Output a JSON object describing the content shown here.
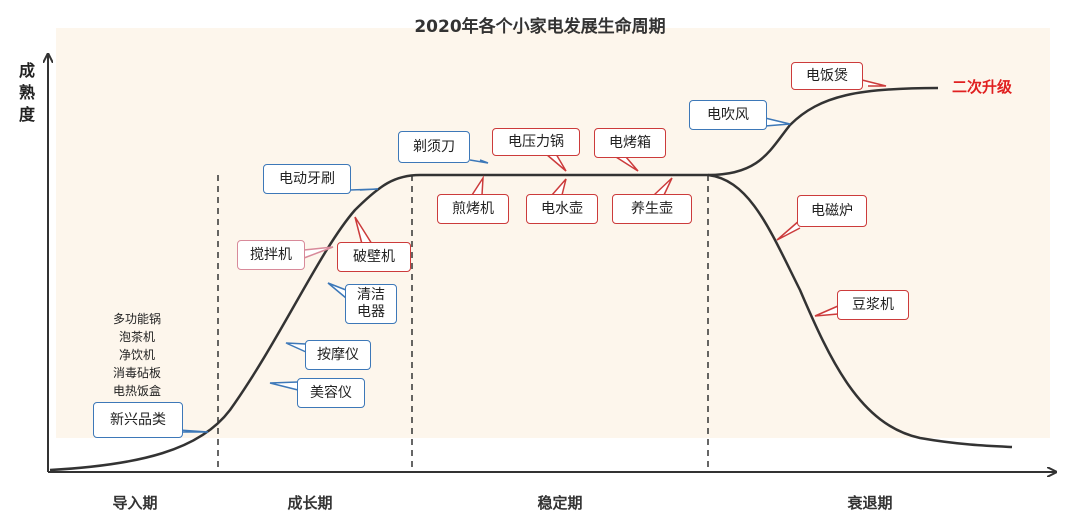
{
  "title": "2020年各个小家电发展生命周期",
  "y_axis_label": "成熟度",
  "stages": [
    "导入期",
    "成长期",
    "稳定期",
    "衰退期"
  ],
  "emerging_list": [
    "多功能锅",
    "泡茶机",
    "净饮机",
    "消毒砧板",
    "电热饭盒"
  ],
  "upgrade_label": "二次升级",
  "callouts": [
    {
      "label": "新兴品类",
      "style": "blue"
    },
    {
      "label": "美容仪",
      "style": "blue"
    },
    {
      "label": "按摩仪",
      "style": "blue"
    },
    {
      "label": "清洁\n电器",
      "style": "blue"
    },
    {
      "label": "搅拌机",
      "style": "pink"
    },
    {
      "label": "破壁机",
      "style": "red"
    },
    {
      "label": "电动牙刷",
      "style": "blue"
    },
    {
      "label": "剃须刀",
      "style": "blue"
    },
    {
      "label": "电压力锅",
      "style": "red"
    },
    {
      "label": "电烤箱",
      "style": "red"
    },
    {
      "label": "煎烤机",
      "style": "red"
    },
    {
      "label": "电水壶",
      "style": "red"
    },
    {
      "label": "养生壶",
      "style": "red"
    },
    {
      "label": "电吹风",
      "style": "blue"
    },
    {
      "label": "电饭煲",
      "style": "red"
    },
    {
      "label": "电磁炉",
      "style": "red"
    },
    {
      "label": "豆浆机",
      "style": "red"
    }
  ],
  "colors": {
    "blue": "#3d78b8",
    "red": "#cc3b3b",
    "pink": "#d88a9a",
    "background": "#fdf6ec",
    "upgrade": "#e02020"
  }
}
